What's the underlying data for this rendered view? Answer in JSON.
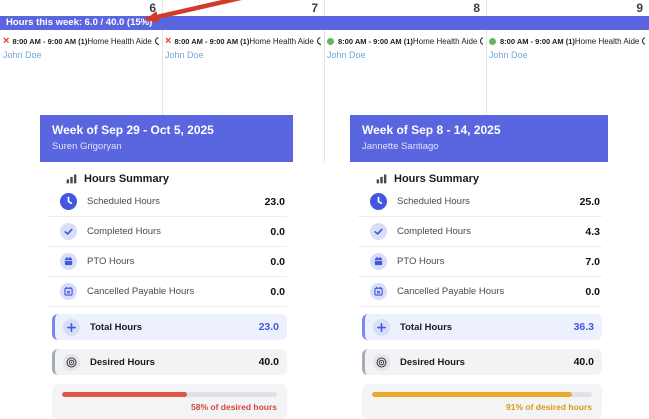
{
  "week_bar": {
    "label": "Hours this week: 6.0 / 40.0 (15%)"
  },
  "icons": {
    "cancelled_glyph": "×"
  },
  "colors": {
    "accent_blue": "#5a65e0",
    "cancelled_red": "#d9402f",
    "confirmed_green": "#5fb760",
    "client_blue": "#6fa8dc"
  },
  "calendar": {
    "days": [
      {
        "number": "6",
        "status": "cancelled",
        "time": "8:00 AM - 9:00 AM (1)",
        "service": "Home Health Aide",
        "client": "John Doe"
      },
      {
        "number": "7",
        "status": "cancelled",
        "time": "8:00 AM - 9:00 AM (1)",
        "service": "Home Health Aide",
        "client": "John Doe"
      },
      {
        "number": "8",
        "status": "confirmed",
        "time": "8:00 AM - 9:00 AM (1)",
        "service": "Home Health Aide",
        "client": "John Doe"
      },
      {
        "number": "9",
        "status": "confirmed",
        "time": "8:00 AM - 9:00 AM (1)",
        "service": "Home Health Aide",
        "client": "John Doe"
      }
    ]
  },
  "cards": [
    {
      "title": "Week of Sep 29 - Oct 5, 2025",
      "person": "Suren Grigoryan",
      "section_title": "Hours Summary",
      "rows": [
        {
          "label": "Scheduled Hours",
          "value": "23.0"
        },
        {
          "label": "Completed Hours",
          "value": "0.0"
        },
        {
          "label": "PTO Hours",
          "value": "0.0"
        },
        {
          "label": "Cancelled Payable Hours",
          "value": "0.0"
        }
      ],
      "total": {
        "label": "Total Hours",
        "value": "23.0"
      },
      "desired": {
        "label": "Desired Hours",
        "value": "40.0"
      },
      "progress": {
        "percent": 58,
        "label": "58% of desired hours",
        "color": "#e0544a",
        "text_color": "#d8453b"
      }
    },
    {
      "title": "Week of Sep 8 - 14, 2025",
      "person": "Jannette Santiago",
      "section_title": "Hours Summary",
      "rows": [
        {
          "label": "Scheduled Hours",
          "value": "25.0"
        },
        {
          "label": "Completed Hours",
          "value": "4.3"
        },
        {
          "label": "PTO Hours",
          "value": "7.0"
        },
        {
          "label": "Cancelled Payable Hours",
          "value": "0.0"
        }
      ],
      "total": {
        "label": "Total Hours",
        "value": "36.3"
      },
      "desired": {
        "label": "Desired Hours",
        "value": "40.0"
      },
      "progress": {
        "percent": 91,
        "label": "91% of desired hours",
        "color": "#ecaa2b",
        "text_color": "#dd9713"
      }
    }
  ]
}
